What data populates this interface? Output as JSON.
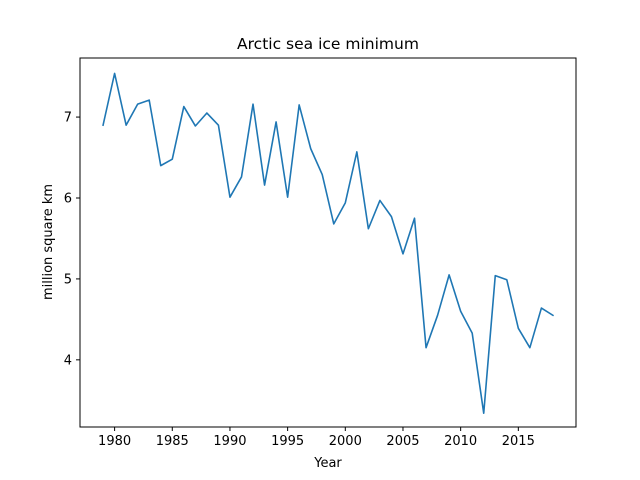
{
  "chart_data": {
    "type": "line",
    "title": "Arctic sea ice minimum",
    "xlabel": "Year",
    "ylabel": "million square km",
    "xlim": [
      1977,
      2020
    ],
    "ylim": [
      3.17,
      7.73
    ],
    "xticks": [
      1980,
      1985,
      1990,
      1995,
      2000,
      2005,
      2010,
      2015
    ],
    "xtick_labels": [
      "1980",
      "1985",
      "1990",
      "1995",
      "2000",
      "2005",
      "2010",
      "2015"
    ],
    "yticks": [
      4,
      5,
      6,
      7
    ],
    "ytick_labels": [
      "4",
      "5",
      "6",
      "7"
    ],
    "grid": false,
    "series": [
      {
        "color": "#1f77b4",
        "x": [
          1979,
          1980,
          1981,
          1982,
          1983,
          1984,
          1985,
          1986,
          1987,
          1988,
          1989,
          1990,
          1991,
          1992,
          1993,
          1994,
          1995,
          1996,
          1997,
          1998,
          1999,
          2000,
          2001,
          2002,
          2003,
          2004,
          2005,
          2006,
          2007,
          2008,
          2009,
          2010,
          2011,
          2012,
          2013,
          2014,
          2015,
          2016,
          2017,
          2018
        ],
        "y": [
          6.9,
          7.54,
          6.9,
          7.16,
          7.21,
          6.4,
          6.48,
          7.13,
          6.89,
          7.05,
          6.9,
          6.01,
          6.26,
          7.16,
          6.16,
          6.94,
          6.01,
          7.15,
          6.61,
          6.29,
          5.68,
          5.94,
          6.57,
          5.62,
          5.97,
          5.77,
          5.31,
          5.75,
          4.15,
          4.55,
          5.05,
          4.6,
          4.33,
          3.34,
          5.04,
          4.99,
          4.39,
          4.15,
          4.64,
          4.55
        ]
      }
    ]
  }
}
